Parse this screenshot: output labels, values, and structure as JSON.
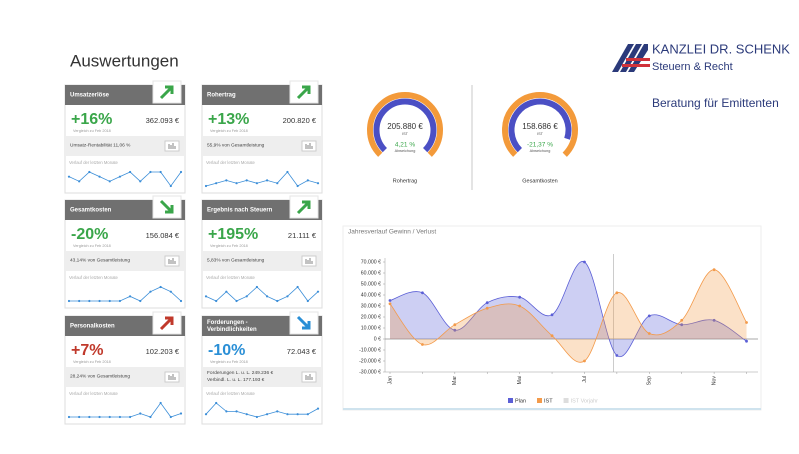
{
  "header": {
    "title": "Auswertungen",
    "logo_name": "KANZLEI DR. SCHENK",
    "logo_tagline": "Steuern & Recht",
    "subtitle": "Beratung für Emittenten"
  },
  "cards": [
    {
      "title": [
        "Umsatzerlöse"
      ],
      "change": "+16%",
      "comparison": "Vergleich zu Feb 2018",
      "value": "362.093 €",
      "notes": [
        "Umsatz-Rentabilität 11,06 %"
      ],
      "trend_label": "Verlauf der letzten Monate",
      "direction": "up",
      "color": "#3aa64a",
      "sparkline": [
        5,
        4,
        6,
        5,
        4,
        5,
        6,
        4,
        6,
        6,
        3,
        6
      ]
    },
    {
      "title": [
        "Rohertrag"
      ],
      "change": "+13%",
      "comparison": "Vergleich zu Feb 2018",
      "value": "200.820 €",
      "notes": [
        "55,9% von Gesamtleistung"
      ],
      "trend_label": "Verlauf der letzten Monate",
      "direction": "up",
      "color": "#3aa64a",
      "sparkline": [
        3,
        4,
        5,
        4,
        5,
        4,
        5,
        4,
        8,
        3,
        5,
        4
      ]
    },
    {
      "title": [
        "Gesamtkosten"
      ],
      "change": "-20%",
      "comparison": "Vergleich zu Feb 2018",
      "value": "156.084 €",
      "notes": [
        "43,14% von Gesamtleistung"
      ],
      "trend_label": "Verlauf der letzten Monate",
      "direction": "down",
      "color": "#3aa64a",
      "sparkline": [
        2,
        2,
        2,
        2,
        2,
        2,
        3,
        2,
        4,
        5,
        4,
        2
      ]
    },
    {
      "title": [
        "Ergebnis nach Steuern"
      ],
      "change": "+195%",
      "comparison": "Vergleich zu Feb 2018",
      "value": "21.111 €",
      "notes": [
        "5,83% von Gesamtleistung"
      ],
      "trend_label": "Verlauf der letzten Monate",
      "direction": "up",
      "color": "#3aa64a",
      "sparkline": [
        4,
        3,
        5,
        3,
        4,
        6,
        4,
        3,
        4,
        6,
        3,
        5
      ]
    },
    {
      "title": [
        "Personalkosten"
      ],
      "change": "+7%",
      "comparison": "Vergleich zu Feb 2018",
      "value": "102.203 €",
      "notes": [
        "28,24% von Gesamtleistung"
      ],
      "trend_label": "Verlauf der letzten Monate",
      "direction": "up",
      "color": "#c0392b",
      "sparkline": [
        2,
        2,
        2,
        2,
        2,
        2,
        2,
        3,
        2,
        6,
        2,
        3
      ]
    },
    {
      "title": [
        "Forderungen -",
        "Verbindlichkeiten"
      ],
      "change": "-10%",
      "comparison": "Vergleich zu Feb 2018",
      "value": "72.043 €",
      "notes": [
        "Forderungen L. u. L. 249.236 €",
        "Verbindl. L. u. L. 177.193 €"
      ],
      "trend_label": "Verlauf der letzten Monate",
      "direction": "down",
      "color": "#2a8fd6",
      "sparkline": [
        3,
        7,
        4,
        4,
        3,
        2,
        3,
        4,
        3,
        3,
        3,
        5
      ]
    }
  ],
  "gauges": [
    {
      "value": "205.880 €",
      "value_type": "IST",
      "deviation": "4,21 %",
      "deviation_label": "Abweichung",
      "label": "Rohertrag",
      "deviation_color": "#3aa64a"
    },
    {
      "value": "158.686 €",
      "value_type": "IST",
      "deviation": "-21,37 %",
      "deviation_label": "Abweichung",
      "label": "Gesamtkosten",
      "deviation_color": "#3aa64a"
    }
  ],
  "chart_data": {
    "type": "line",
    "title": "Jahresverlauf Gewinn / Verlust",
    "categories": [
      "Jan",
      null,
      "Mar",
      null,
      "Mai",
      null,
      "Jul",
      null,
      "Sep",
      null,
      "Nov",
      null
    ],
    "series": [
      {
        "name": "Plan",
        "color": "#5b5fd6",
        "values": [
          35000,
          42000,
          8000,
          33000,
          38000,
          22000,
          70000,
          -15000,
          21000,
          13000,
          17000,
          -2000
        ]
      },
      {
        "name": "IST",
        "color": "#f39a4a",
        "values": [
          32000,
          -5000,
          13000,
          28000,
          30000,
          3000,
          -20000,
          42000,
          5000,
          17000,
          63000,
          15000
        ]
      },
      {
        "name": "IST Vorjahr",
        "color": "#dddddd",
        "values": [
          null,
          null,
          null,
          null,
          null,
          null,
          null,
          null,
          null,
          null,
          null,
          null
        ]
      }
    ],
    "ylim": [
      -30000,
      70000
    ],
    "yticks": [
      {
        "value": 70000,
        "label": "70.000 €"
      },
      {
        "value": 60000,
        "label": "60.000 €"
      },
      {
        "value": 50000,
        "label": "50.000 €"
      },
      {
        "value": 40000,
        "label": "40.000 €"
      },
      {
        "value": 30000,
        "label": "30.000 €"
      },
      {
        "value": 20000,
        "label": "20.000 €"
      },
      {
        "value": 10000,
        "label": "10.000 €"
      },
      {
        "value": 0,
        "label": "0 €"
      },
      {
        "value": -10000,
        "label": "-10.000 €"
      },
      {
        "value": -20000,
        "label": "-20.000 €"
      },
      {
        "value": -30000,
        "label": "-30.000 €"
      }
    ],
    "grid": false
  }
}
